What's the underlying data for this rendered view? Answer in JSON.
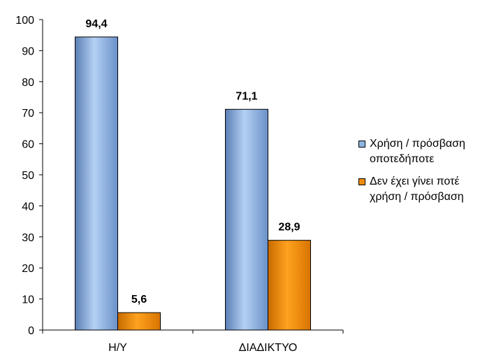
{
  "chart_data": {
    "type": "bar",
    "categories": [
      "Η/Υ",
      "ΔΙΑΔΙΚΤΥΟ"
    ],
    "series": [
      {
        "name": "Χρήση / πρόσβαση\nοποτεδήποτε",
        "values": [
          94.4,
          71.1
        ],
        "labels": [
          "94,4",
          "71,1"
        ],
        "color": "#8fb4e3"
      },
      {
        "name": "Δεν έχει γίνει ποτέ\nχρήση / πρόσβαση",
        "values": [
          5.6,
          28.9
        ],
        "labels": [
          "5,6",
          "28,9"
        ],
        "color": "#f28c0a"
      }
    ],
    "ylim": [
      0,
      100
    ],
    "yticks": [
      "0",
      "10",
      "20",
      "30",
      "40",
      "50",
      "60",
      "70",
      "80",
      "90",
      "100"
    ],
    "grid": false,
    "legend_position": "right",
    "title": "",
    "xlabel": "",
    "ylabel": ""
  }
}
